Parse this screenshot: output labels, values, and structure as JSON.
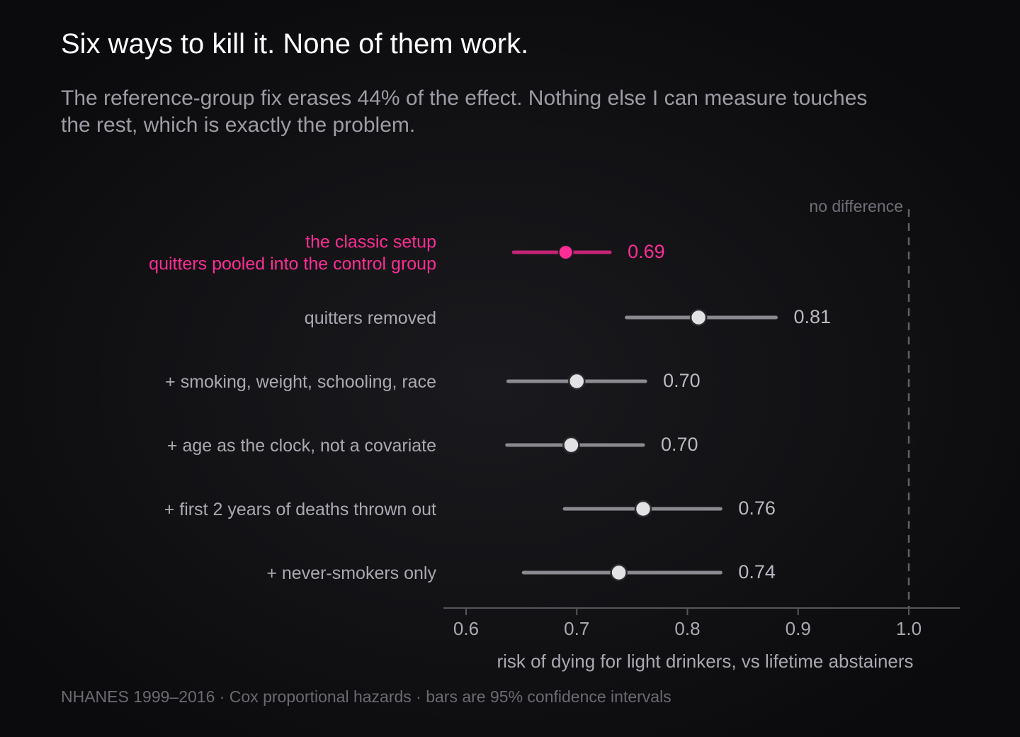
{
  "header": {
    "title": "Six ways to kill it. None of them work.",
    "subtitle": "The reference-group fix erases 44% of the effect. Nothing else I can measure touches the rest, which is exactly the problem."
  },
  "footer": {
    "source": "NHANES 1999–2016 · Cox proportional hazards · bars are 95% confidence intervals"
  },
  "chart_data": {
    "type": "scatter",
    "subtype": "forest-plot",
    "xlabel": "risk of dying for light drinkers, vs lifetime abstainers",
    "xlim": [
      0.58,
      1.05
    ],
    "x_ticks": [
      0.6,
      0.7,
      0.8,
      0.9,
      1.0
    ],
    "x_tick_labels": [
      "0.6",
      "0.7",
      "0.8",
      "0.9",
      "1.0"
    ],
    "reference_line": {
      "x": 1.0,
      "label": "no difference",
      "style": "dashed"
    },
    "highlight_color": "#ff2d95",
    "neutral_color": "#8a8a90",
    "rows": [
      {
        "label_lines": [
          "the classic setup",
          "quitters pooled into the control group"
        ],
        "estimate": 0.69,
        "ci_low": 0.643,
        "ci_high": 0.73,
        "value_label": "0.69",
        "highlight": true
      },
      {
        "label_lines": [
          "quitters removed"
        ],
        "estimate": 0.81,
        "ci_low": 0.745,
        "ci_high": 0.88,
        "value_label": "0.81",
        "highlight": false
      },
      {
        "label_lines": [
          "+ smoking, weight, schooling, race"
        ],
        "estimate": 0.7,
        "ci_low": 0.638,
        "ci_high": 0.762,
        "value_label": "0.70",
        "highlight": false
      },
      {
        "label_lines": [
          "+ age as the clock, not a covariate"
        ],
        "estimate": 0.695,
        "ci_low": 0.637,
        "ci_high": 0.76,
        "value_label": "0.70",
        "highlight": false
      },
      {
        "label_lines": [
          "+ first 2 years of deaths thrown out"
        ],
        "estimate": 0.76,
        "ci_low": 0.689,
        "ci_high": 0.83,
        "value_label": "0.76",
        "highlight": false
      },
      {
        "label_lines": [
          "+ never-smokers only"
        ],
        "estimate": 0.738,
        "ci_low": 0.652,
        "ci_high": 0.83,
        "value_label": "0.74",
        "highlight": false
      }
    ]
  }
}
